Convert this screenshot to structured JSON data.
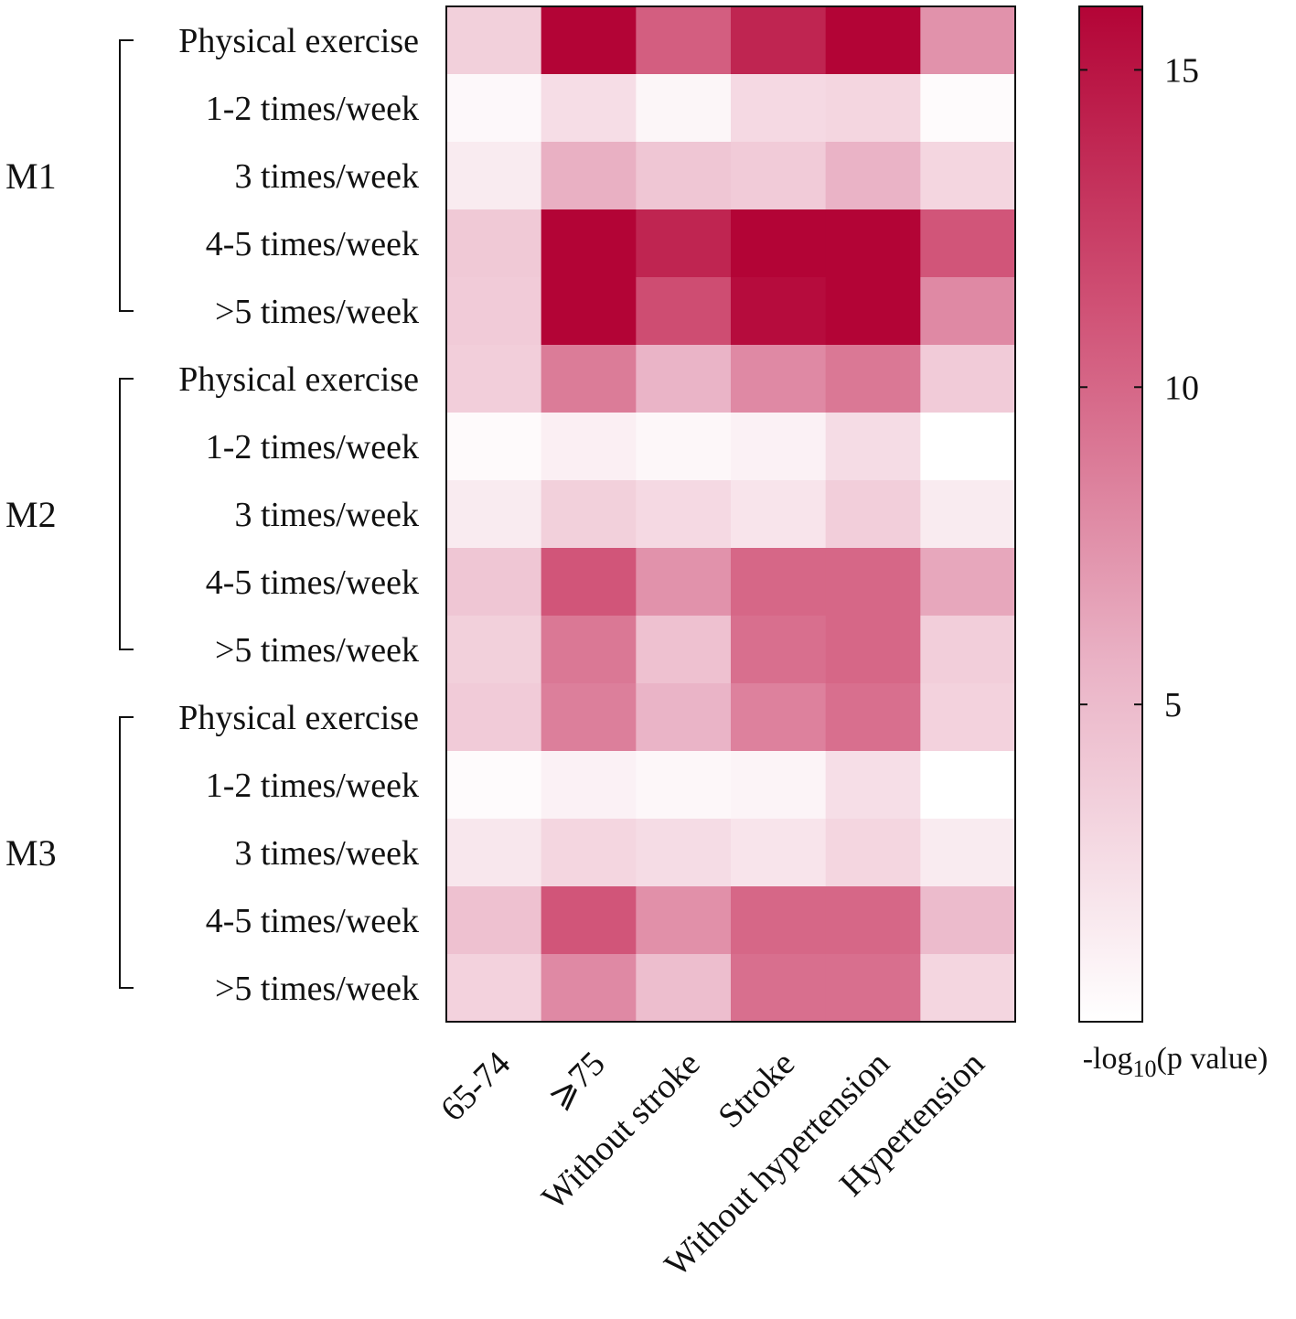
{
  "chart_data": {
    "type": "heatmap",
    "title": "",
    "colorbar": {
      "label_prefix": "-log",
      "label_subscript": "10",
      "label_suffix": "(p value)",
      "range": [
        0,
        16
      ],
      "ticks": [
        5,
        10,
        15
      ],
      "color_low": "#ffffff",
      "color_high": "#b30436"
    },
    "columns": [
      "65-74",
      "⩾75",
      "Without stroke",
      "Stroke",
      "Without hypertension",
      "Hypertension"
    ],
    "groups": [
      {
        "name": "M1",
        "rows": [
          "Physical exercise",
          "1-2 times/week",
          "3 times/week",
          "4-5 times/week",
          ">5 times/week"
        ]
      },
      {
        "name": "M2",
        "rows": [
          "Physical exercise",
          "1-2 times/week",
          "3 times/week",
          "4-5 times/week",
          ">5 times/week"
        ]
      },
      {
        "name": "M3",
        "rows": [
          "Physical exercise",
          "1-2 times/week",
          "3 times/week",
          "4-5 times/week",
          ">5 times/week"
        ]
      }
    ],
    "values": [
      [
        3.5,
        16,
        10.5,
        14,
        16,
        7.5
      ],
      [
        0.5,
        2.5,
        0.7,
        2.8,
        3.0,
        0.3
      ],
      [
        1.5,
        5.8,
        4.2,
        3.8,
        5.6,
        3.0
      ],
      [
        4.0,
        16,
        14,
        16,
        16,
        11
      ],
      [
        3.8,
        16,
        11.5,
        15.5,
        16,
        8.0
      ],
      [
        3.6,
        8.8,
        5.5,
        8.0,
        9.0,
        3.8
      ],
      [
        0.4,
        1.2,
        0.6,
        1.0,
        2.6,
        0.0
      ],
      [
        1.5,
        3.5,
        2.8,
        2.0,
        3.6,
        1.5
      ],
      [
        4.2,
        11,
        7.5,
        10,
        10,
        6.3
      ],
      [
        3.5,
        9.0,
        4.6,
        9.5,
        10,
        3.6
      ],
      [
        3.8,
        8.6,
        5.5,
        8.5,
        9.5,
        3.3
      ],
      [
        0.3,
        1.0,
        0.6,
        0.8,
        2.4,
        0.0
      ],
      [
        1.8,
        3.0,
        2.6,
        2.0,
        3.0,
        1.5
      ],
      [
        4.6,
        11,
        7.6,
        10,
        10,
        5.0
      ],
      [
        3.3,
        8.0,
        4.8,
        9.5,
        9.5,
        3.0
      ]
    ]
  }
}
